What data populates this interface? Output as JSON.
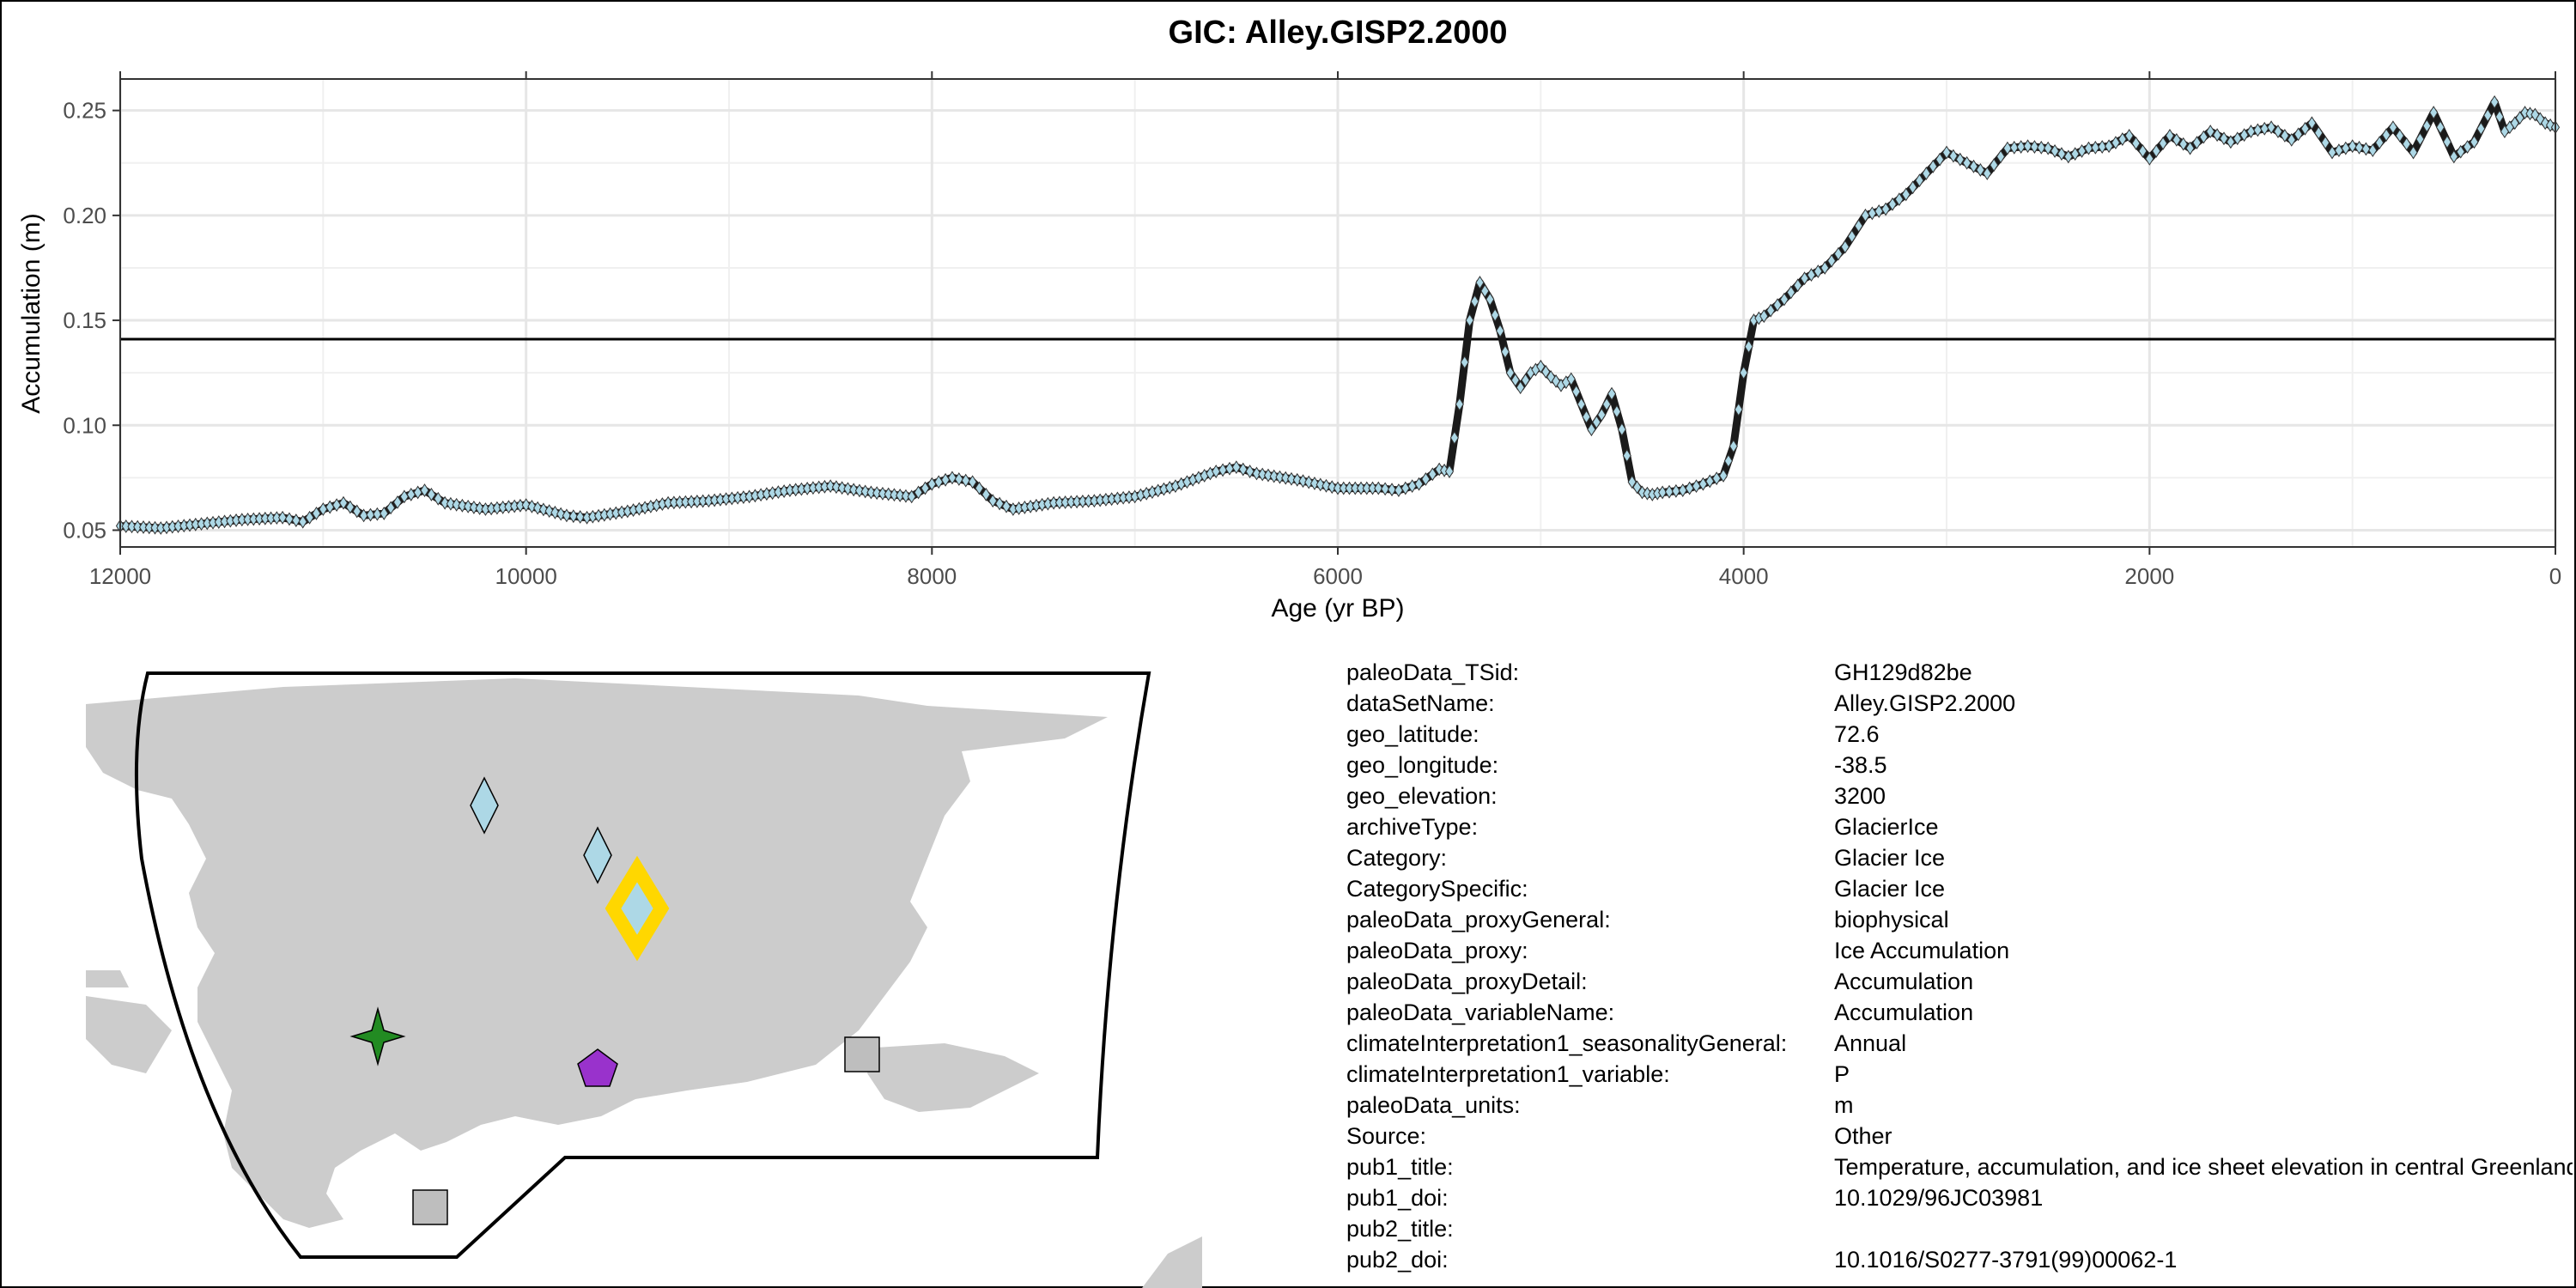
{
  "chart_data": {
    "type": "line",
    "title": "GIC: Alley.GISP2.2000",
    "xlabel": "Age (yr BP)",
    "ylabel": "Accumulation (m)",
    "xlim": [
      12000,
      0
    ],
    "ylim": [
      0.042,
      0.265
    ],
    "x_ticks": [
      12000,
      10000,
      8000,
      6000,
      4000,
      2000,
      0
    ],
    "x_tick_labels": [
      "12000",
      "10000",
      "8000",
      "6000",
      "4000",
      "2000",
      "0"
    ],
    "y_ticks": [
      0.05,
      0.1,
      0.15,
      0.2,
      0.25
    ],
    "y_tick_labels": [
      "0.05",
      "0.10",
      "0.15",
      "0.20",
      "0.25"
    ],
    "reference_line_y": 0.141,
    "grid": true,
    "marker": "diamond",
    "marker_fill": "#add8e6",
    "line_color": "#1a1a1a",
    "series": [
      {
        "x": [
          12000,
          11800,
          11600,
          11400,
          11200,
          11100,
          11000,
          10900,
          10800,
          10700,
          10600,
          10500,
          10400,
          10200,
          10000,
          9800,
          9700,
          9500,
          9300,
          9100,
          8900,
          8700,
          8500,
          8300,
          8100,
          8000,
          7900,
          7800,
          7700,
          7600,
          7400,
          7200,
          7000,
          6800,
          6600,
          6500,
          6400,
          6200,
          6000,
          5800,
          5700,
          5600,
          5500,
          5450,
          5400,
          5350,
          5300,
          5250,
          5200,
          5150,
          5100,
          5050,
          5000,
          4950,
          4900,
          4850,
          4800,
          4750,
          4700,
          4650,
          4600,
          4550,
          4500,
          4450,
          4400,
          4300,
          4200,
          4100,
          4050,
          4000,
          3950,
          3900,
          3800,
          3700,
          3600,
          3500,
          3400,
          3300,
          3200,
          3100,
          3000,
          2900,
          2800,
          2700,
          2600,
          2500,
          2400,
          2300,
          2200,
          2100,
          2000,
          1900,
          1800,
          1700,
          1600,
          1500,
          1400,
          1300,
          1200,
          1100,
          1000,
          900,
          800,
          700,
          600,
          500,
          400,
          300,
          250,
          200,
          150,
          100,
          50,
          0
        ],
        "y": [
          0.052,
          0.051,
          0.053,
          0.055,
          0.056,
          0.054,
          0.06,
          0.063,
          0.057,
          0.058,
          0.066,
          0.069,
          0.063,
          0.06,
          0.062,
          0.057,
          0.056,
          0.059,
          0.063,
          0.064,
          0.066,
          0.069,
          0.071,
          0.068,
          0.066,
          0.072,
          0.075,
          0.073,
          0.064,
          0.06,
          0.063,
          0.064,
          0.066,
          0.071,
          0.078,
          0.08,
          0.077,
          0.074,
          0.07,
          0.07,
          0.069,
          0.072,
          0.079,
          0.078,
          0.11,
          0.15,
          0.168,
          0.16,
          0.145,
          0.125,
          0.118,
          0.125,
          0.128,
          0.123,
          0.119,
          0.122,
          0.11,
          0.098,
          0.105,
          0.115,
          0.098,
          0.073,
          0.068,
          0.067,
          0.068,
          0.069,
          0.072,
          0.076,
          0.09,
          0.125,
          0.15,
          0.152,
          0.16,
          0.17,
          0.175,
          0.185,
          0.2,
          0.203,
          0.21,
          0.22,
          0.23,
          0.225,
          0.22,
          0.232,
          0.233,
          0.232,
          0.228,
          0.232,
          0.233,
          0.238,
          0.227,
          0.238,
          0.232,
          0.24,
          0.235,
          0.24,
          0.242,
          0.236,
          0.244,
          0.23,
          0.233,
          0.231,
          0.242,
          0.23,
          0.249,
          0.228,
          0.235,
          0.254,
          0.24,
          0.244,
          0.249,
          0.248,
          0.244,
          0.242
        ]
      }
    ]
  },
  "map": {
    "markers": [
      {
        "name": "light-blue-diamond-marker",
        "shape": "diamond",
        "fill": "#add8e6"
      },
      {
        "name": "light-blue-diamond-marker-2",
        "shape": "diamond",
        "fill": "#add8e6"
      },
      {
        "name": "highlighted-site-marker",
        "shape": "diamond",
        "fill": "#add8e6",
        "outline": "#ffd700"
      },
      {
        "name": "green-star-marker",
        "shape": "star",
        "fill": "#228b22"
      },
      {
        "name": "purple-pentagon-marker",
        "shape": "pentagon",
        "fill": "#9932cc"
      },
      {
        "name": "gray-square-marker",
        "shape": "square",
        "fill": "#bebebe"
      },
      {
        "name": "gray-square-marker-2",
        "shape": "square",
        "fill": "#bebebe"
      }
    ],
    "land_color": "#cccccc"
  },
  "metadata": [
    {
      "key": "paleoData_TSid:",
      "value": "GH129d82be"
    },
    {
      "key": "dataSetName:",
      "value": "Alley.GISP2.2000"
    },
    {
      "key": "geo_latitude:",
      "value": "72.6"
    },
    {
      "key": "geo_longitude:",
      "value": "-38.5"
    },
    {
      "key": "geo_elevation:",
      "value": "3200"
    },
    {
      "key": "archiveType:",
      "value": "GlacierIce"
    },
    {
      "key": "Category:",
      "value": "Glacier Ice"
    },
    {
      "key": "CategorySpecific:",
      "value": "Glacier Ice"
    },
    {
      "key": "paleoData_proxyGeneral:",
      "value": "biophysical"
    },
    {
      "key": "paleoData_proxy:",
      "value": "Ice Accumulation"
    },
    {
      "key": "paleoData_proxyDetail:",
      "value": "Accumulation"
    },
    {
      "key": "paleoData_variableName:",
      "value": "Accumulation"
    },
    {
      "key": "climateInterpretation1_seasonalityGeneral:",
      "value": "Annual"
    },
    {
      "key": "climateInterpretation1_variable:",
      "value": "P"
    },
    {
      "key": "paleoData_units:",
      "value": "m"
    },
    {
      "key": "Source:",
      "value": "Other"
    },
    {
      "key": "pub1_title:",
      "value": "Temperature, accumulation, and ice sheet elevation in central Greenland"
    },
    {
      "key": "pub1_doi:",
      "value": "10.1029/96JC03981"
    },
    {
      "key": "pub2_title:",
      "value": ""
    },
    {
      "key": "pub2_doi:",
      "value": "10.1016/S0277-3791(99)00062-1"
    }
  ]
}
